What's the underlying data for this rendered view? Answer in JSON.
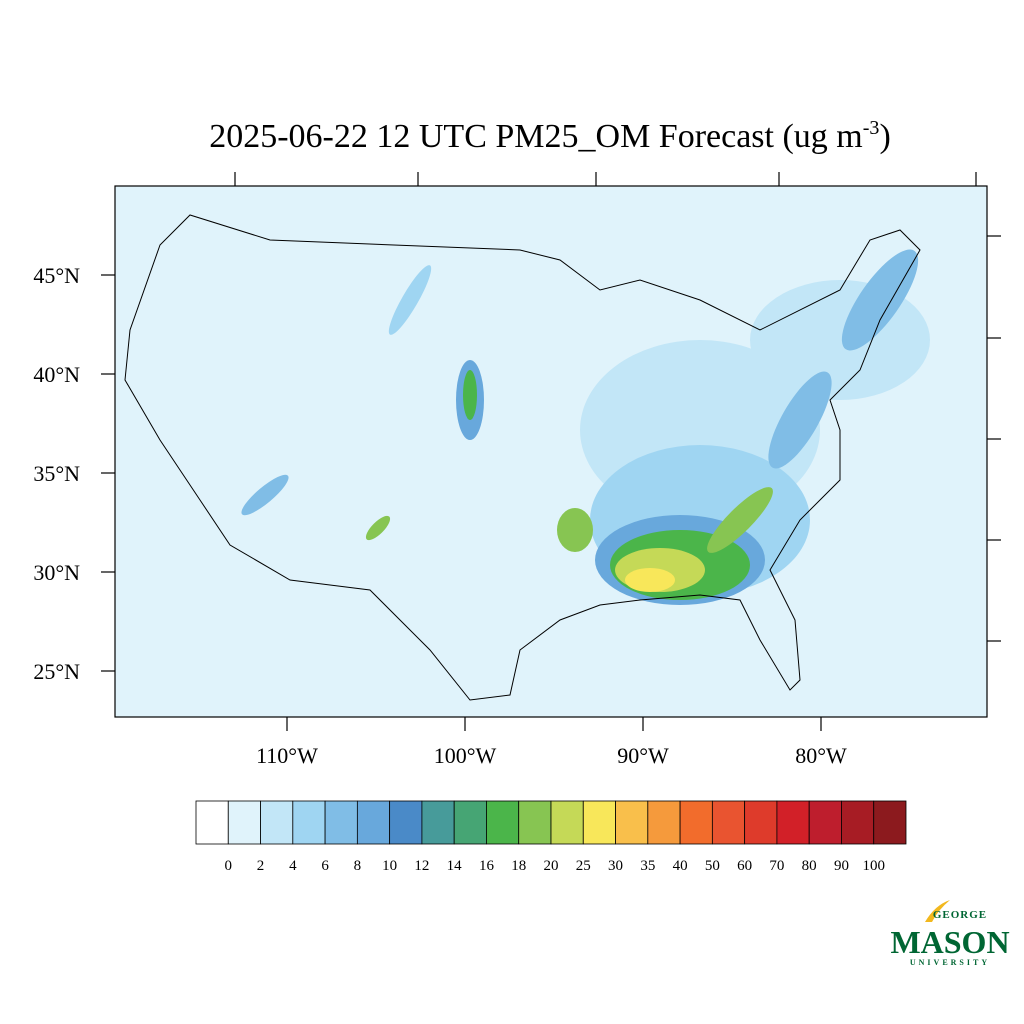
{
  "title": {
    "main": "2025-06-22 12 UTC PM25_OM Forecast (ug m",
    "superscript": "-3",
    "close": ")"
  },
  "map": {
    "lat_ticks": [
      {
        "value": 45,
        "label": "45°N"
      },
      {
        "value": 40,
        "label": "40°N"
      },
      {
        "value": 35,
        "label": "35°N"
      },
      {
        "value": 30,
        "label": "30°N"
      },
      {
        "value": 25,
        "label": "25°N"
      }
    ],
    "lon_ticks": [
      {
        "value": -110,
        "label": "110°W"
      },
      {
        "value": -100,
        "label": "100°W"
      },
      {
        "value": -90,
        "label": "90°W"
      },
      {
        "value": -80,
        "label": "80°W"
      }
    ]
  },
  "colorbar": {
    "levels": [
      0,
      2,
      4,
      6,
      8,
      10,
      12,
      14,
      16,
      18,
      20,
      25,
      30,
      35,
      40,
      50,
      60,
      70,
      80,
      90,
      100
    ],
    "colors": [
      "#ffffff",
      "#e0f3fb",
      "#c2e6f7",
      "#9fd5f2",
      "#80bde6",
      "#68a8dc",
      "#4a8ac8",
      "#479b9a",
      "#46a574",
      "#4bb54a",
      "#87c552",
      "#c5d957",
      "#f8e75a",
      "#f9bf4b",
      "#f59a3c",
      "#f26c2c",
      "#e95430",
      "#de3b2b",
      "#d22028",
      "#be1e2d",
      "#a71c24",
      "#8c1a1e"
    ]
  },
  "logo": {
    "top": "GEORGE",
    "name": "MASON",
    "bottom": "UNIVERSITY"
  }
}
